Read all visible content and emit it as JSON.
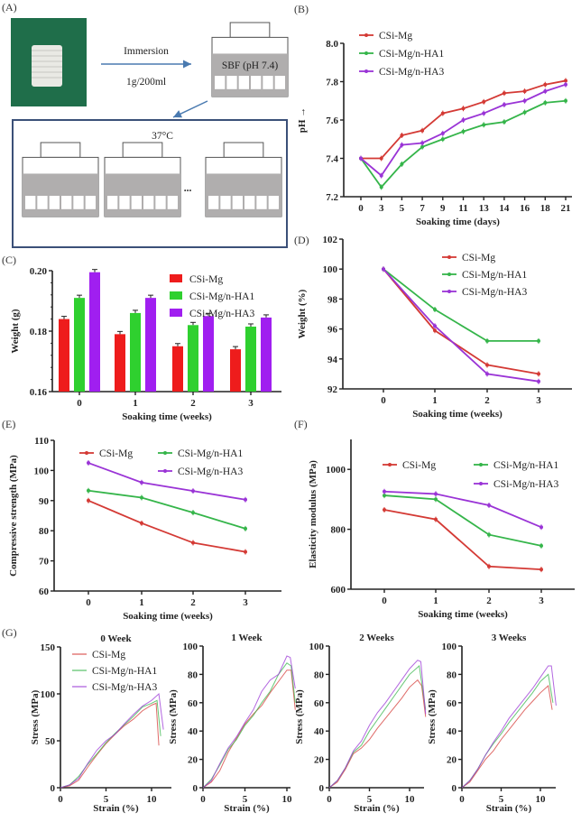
{
  "panel_labels": {
    "a": "(A)",
    "b": "(B)",
    "c": "(C)",
    "d": "(D)",
    "e": "(E)",
    "f": "(F)",
    "g": "(G)"
  },
  "schematic": {
    "arrow_label_top": "Immersion",
    "arrow_label_bottom": "1g/200ml",
    "container_label": "SBF (pH 7.4)",
    "incubation_label": "37°C",
    "ellipsis": "...",
    "colors": {
      "photo_bg": "#1f6e4a",
      "liquid": "#b0aeae",
      "frame": "#3b5078",
      "arrow": "#4a7ab0"
    }
  },
  "colors": {
    "CSi-Mg": "#d43a35",
    "CSi-Mg/n-HA1": "#35b54a",
    "CSi-Mg/n-HA3": "#9a34d6"
  },
  "bar_colors": {
    "CSi-Mg": "#ee1c1c",
    "CSi-Mg/n-HA1": "#2fd02f",
    "CSi-Mg/n-HA3": "#a01ff0"
  },
  "chart_data": [
    {
      "id": "B",
      "type": "line",
      "xlabel": "Soaking time (days)",
      "ylabel": "pH",
      "ylabel_arrow": "↑",
      "categories": [
        "0",
        "3",
        "5",
        "7",
        "9",
        "11",
        "13",
        "14",
        "16",
        "18",
        "21"
      ],
      "ylim": [
        7.2,
        8.0
      ],
      "yticks": [
        "7.2",
        "7.4",
        "7.6",
        "7.8",
        "8.0"
      ],
      "legend": "top-left",
      "series": [
        {
          "name": "CSi-Mg",
          "values": [
            7.4,
            7.4,
            7.52,
            7.545,
            7.635,
            7.66,
            7.695,
            7.74,
            7.75,
            7.785,
            7.805
          ]
        },
        {
          "name": "CSi-Mg/n-HA1",
          "values": [
            7.4,
            7.25,
            7.37,
            7.46,
            7.5,
            7.54,
            7.575,
            7.59,
            7.64,
            7.69,
            7.7
          ]
        },
        {
          "name": "CSi-Mg/n-HA3",
          "values": [
            7.4,
            7.31,
            7.47,
            7.48,
            7.53,
            7.6,
            7.635,
            7.68,
            7.7,
            7.75,
            7.785
          ]
        }
      ]
    },
    {
      "id": "C",
      "type": "bar",
      "xlabel": "Soaking time (weeks)",
      "ylabel": "Weight (g)",
      "categories": [
        "0",
        "1",
        "2",
        "3"
      ],
      "ylim": [
        0.16,
        0.2
      ],
      "yticks": [
        "0.16",
        "0.18",
        "0.20"
      ],
      "legend": "top-right",
      "series": [
        {
          "name": "CSi-Mg",
          "values": [
            0.184,
            0.179,
            0.175,
            0.174
          ]
        },
        {
          "name": "CSi-Mg/n-HA1",
          "values": [
            0.191,
            0.186,
            0.182,
            0.1815
          ]
        },
        {
          "name": "CSi-Mg/n-HA3",
          "values": [
            0.1995,
            0.191,
            0.185,
            0.1845
          ]
        }
      ]
    },
    {
      "id": "D",
      "type": "line",
      "xlabel": "Soaking time (weeks)",
      "ylabel": "Weight (%)",
      "categories": [
        "0",
        "1",
        "2",
        "3"
      ],
      "ylim": [
        92,
        102
      ],
      "yticks": [
        "92",
        "94",
        "96",
        "98",
        "100",
        "102"
      ],
      "legend": "top-right",
      "series": [
        {
          "name": "CSi-Mg",
          "values": [
            100,
            95.9,
            93.6,
            93.0
          ]
        },
        {
          "name": "CSi-Mg/n-HA1",
          "values": [
            100,
            97.3,
            95.2,
            95.2
          ]
        },
        {
          "name": "CSi-Mg/n-HA3",
          "values": [
            100,
            96.2,
            93.0,
            92.5
          ]
        }
      ]
    },
    {
      "id": "E",
      "type": "line",
      "xlabel": "Soaking time (weeks)",
      "ylabel": "Compressive strength (MPa)",
      "categories": [
        "0",
        "1",
        "2",
        "3"
      ],
      "ylim": [
        60,
        110
      ],
      "yticks": [
        "60",
        "70",
        "80",
        "90",
        "100",
        "110"
      ],
      "legend": "top",
      "series": [
        {
          "name": "CSi-Mg",
          "values": [
            90,
            82.5,
            76,
            73
          ]
        },
        {
          "name": "CSi-Mg/n-HA1",
          "values": [
            93.3,
            91,
            86,
            80.7
          ]
        },
        {
          "name": "CSi-Mg/n-HA3",
          "values": [
            102.5,
            96,
            93.2,
            90.3
          ]
        }
      ]
    },
    {
      "id": "F",
      "type": "line",
      "xlabel": "Soaking time (weeks)",
      "ylabel": "Elasticity modulus (MPa)",
      "categories": [
        "0",
        "1",
        "2",
        "3"
      ],
      "ylim": [
        600,
        1100
      ],
      "yticks": [
        "600",
        "800",
        "1000"
      ],
      "legend": "top",
      "series": [
        {
          "name": "CSi-Mg",
          "values": [
            865,
            833,
            676,
            666
          ]
        },
        {
          "name": "CSi-Mg/n-HA1",
          "values": [
            913,
            900,
            782,
            745
          ]
        },
        {
          "name": "CSi-Mg/n-HA3",
          "values": [
            926,
            918,
            880,
            807
          ]
        }
      ]
    },
    {
      "id": "G0",
      "type": "line",
      "title": "0 Week",
      "xlabel": "Strain (%)",
      "ylabel": "Stress (MPa)",
      "xlim": [
        0,
        12
      ],
      "xticks": [
        "0",
        "5",
        "10"
      ],
      "ylim": [
        0,
        150
      ],
      "yticks": [
        "0",
        "50",
        "100",
        "150"
      ],
      "legend": "top-left",
      "series": [
        {
          "name": "CSi-Mg",
          "points": [
            [
              0,
              0
            ],
            [
              1,
              2
            ],
            [
              2,
              8
            ],
            [
              3,
              22
            ],
            [
              4,
              35
            ],
            [
              5,
              47
            ],
            [
              6,
              57
            ],
            [
              7,
              66
            ],
            [
              8,
              73
            ],
            [
              9,
              82
            ],
            [
              10,
              88
            ],
            [
              10.5,
              90
            ],
            [
              10.8,
              45
            ]
          ]
        },
        {
          "name": "CSi-Mg/n-HA1",
          "points": [
            [
              0,
              0
            ],
            [
              1,
              3
            ],
            [
              2,
              12
            ],
            [
              3,
              25
            ],
            [
              4,
              36
            ],
            [
              5,
              48
            ],
            [
              6,
              58
            ],
            [
              7,
              67
            ],
            [
              8,
              76
            ],
            [
              9,
              86
            ],
            [
              10,
              90
            ],
            [
              10.6,
              93
            ],
            [
              11,
              55
            ]
          ]
        },
        {
          "name": "CSi-Mg/n-HA3",
          "points": [
            [
              0,
              0
            ],
            [
              1,
              3
            ],
            [
              2,
              10
            ],
            [
              3,
              26
            ],
            [
              4,
              40
            ],
            [
              5,
              50
            ],
            [
              6,
              57
            ],
            [
              7,
              68
            ],
            [
              8,
              78
            ],
            [
              9,
              87
            ],
            [
              10,
              93
            ],
            [
              10.8,
              100
            ],
            [
              11.3,
              62
            ]
          ]
        }
      ]
    },
    {
      "id": "G1",
      "type": "line",
      "title": "1 Week",
      "xlabel": "Strain (%)",
      "ylabel": "Stress (MPa)",
      "xlim": [
        0,
        11
      ],
      "xticks": [
        "0",
        "5",
        "10"
      ],
      "ylim": [
        0,
        100
      ],
      "yticks": [
        "0",
        "20",
        "40",
        "60",
        "80",
        "100"
      ],
      "series": [
        {
          "name": "CSi-Mg",
          "points": [
            [
              0,
              0
            ],
            [
              1,
              4
            ],
            [
              2,
              12
            ],
            [
              3,
              25
            ],
            [
              4,
              35
            ],
            [
              5,
              45
            ],
            [
              6,
              52
            ],
            [
              7,
              58
            ],
            [
              8,
              67
            ],
            [
              9,
              75
            ],
            [
              10,
              83
            ],
            [
              10.5,
              83
            ],
            [
              11,
              55
            ]
          ]
        },
        {
          "name": "CSi-Mg/n-HA1",
          "points": [
            [
              0,
              0
            ],
            [
              1,
              6
            ],
            [
              2,
              16
            ],
            [
              3,
              27
            ],
            [
              4,
              34
            ],
            [
              5,
              44
            ],
            [
              6,
              51
            ],
            [
              7,
              60
            ],
            [
              8,
              68
            ],
            [
              9,
              80
            ],
            [
              10,
              88
            ],
            [
              10.5,
              86
            ],
            [
              11,
              60
            ]
          ]
        },
        {
          "name": "CSi-Mg/n-HA3",
          "points": [
            [
              0,
              0
            ],
            [
              1,
              5
            ],
            [
              2,
              17
            ],
            [
              3,
              28
            ],
            [
              4,
              36
            ],
            [
              5,
              46
            ],
            [
              6,
              55
            ],
            [
              7,
              68
            ],
            [
              8,
              76
            ],
            [
              9,
              80
            ],
            [
              10,
              93
            ],
            [
              10.4,
              92
            ],
            [
              11,
              70
            ]
          ]
        }
      ]
    },
    {
      "id": "G2",
      "type": "line",
      "title": "2 Weeks",
      "xlabel": "Strain (%)",
      "ylabel": "Stress (MPa)",
      "xlim": [
        0,
        12
      ],
      "xticks": [
        "0",
        "5",
        "10"
      ],
      "ylim": [
        0,
        100
      ],
      "yticks": [
        "0",
        "20",
        "40",
        "60",
        "80",
        "100"
      ],
      "series": [
        {
          "name": "CSi-Mg",
          "points": [
            [
              0,
              0
            ],
            [
              1,
              4
            ],
            [
              2,
              13
            ],
            [
              3,
              24
            ],
            [
              4,
              28
            ],
            [
              5,
              34
            ],
            [
              6,
              42
            ],
            [
              7,
              49
            ],
            [
              8,
              56
            ],
            [
              9,
              63
            ],
            [
              10,
              71
            ],
            [
              11,
              76
            ],
            [
              11.5,
              72
            ],
            [
              12,
              50
            ]
          ]
        },
        {
          "name": "CSi-Mg/n-HA1",
          "points": [
            [
              0,
              0
            ],
            [
              1,
              5
            ],
            [
              2,
              14
            ],
            [
              3,
              25
            ],
            [
              4,
              30
            ],
            [
              5,
              40
            ],
            [
              6,
              48
            ],
            [
              7,
              56
            ],
            [
              8,
              64
            ],
            [
              9,
              72
            ],
            [
              10,
              80
            ],
            [
              11.2,
              86
            ],
            [
              12,
              55
            ]
          ]
        },
        {
          "name": "CSi-Mg/n-HA3",
          "points": [
            [
              0,
              0
            ],
            [
              1,
              5
            ],
            [
              2,
              14
            ],
            [
              3,
              26
            ],
            [
              4,
              33
            ],
            [
              5,
              44
            ],
            [
              6,
              53
            ],
            [
              7,
              60
            ],
            [
              8,
              68
            ],
            [
              9,
              76
            ],
            [
              10,
              84
            ],
            [
              11,
              90
            ],
            [
              11.4,
              89
            ],
            [
              12,
              52
            ]
          ]
        }
      ]
    },
    {
      "id": "G3",
      "type": "line",
      "title": "3 Weeks",
      "xlabel": "Strain (%)",
      "ylabel": "Stress (MPa)",
      "xlim": [
        0,
        12
      ],
      "xticks": [
        "0",
        "5",
        "10"
      ],
      "ylim": [
        0,
        100
      ],
      "yticks": [
        "0",
        "20",
        "40",
        "60",
        "80",
        "100"
      ],
      "series": [
        {
          "name": "CSi-Mg",
          "points": [
            [
              0,
              0
            ],
            [
              1,
              4
            ],
            [
              2,
              12
            ],
            [
              3,
              20
            ],
            [
              4,
              26
            ],
            [
              5,
              34
            ],
            [
              6,
              41
            ],
            [
              7,
              48
            ],
            [
              8,
              55
            ],
            [
              9,
              61
            ],
            [
              10,
              67
            ],
            [
              11,
              72
            ],
            [
              11.5,
              55
            ]
          ]
        },
        {
          "name": "CSi-Mg/n-HA1",
          "points": [
            [
              0,
              0
            ],
            [
              1,
              5
            ],
            [
              2,
              13
            ],
            [
              3,
              23
            ],
            [
              4,
              31
            ],
            [
              5,
              38
            ],
            [
              6,
              46
            ],
            [
              7,
              53
            ],
            [
              8,
              60
            ],
            [
              9,
              67
            ],
            [
              10,
              75
            ],
            [
              11,
              80
            ],
            [
              11.6,
              60
            ]
          ]
        },
        {
          "name": "CSi-Mg/n-HA3",
          "points": [
            [
              0,
              0
            ],
            [
              1,
              5
            ],
            [
              2,
              13
            ],
            [
              3,
              23
            ],
            [
              4,
              32
            ],
            [
              5,
              40
            ],
            [
              6,
              49
            ],
            [
              7,
              56
            ],
            [
              8,
              63
            ],
            [
              9,
              70
            ],
            [
              10,
              78
            ],
            [
              11,
              86
            ],
            [
              11.4,
              86
            ],
            [
              12,
              58
            ]
          ]
        }
      ]
    }
  ]
}
